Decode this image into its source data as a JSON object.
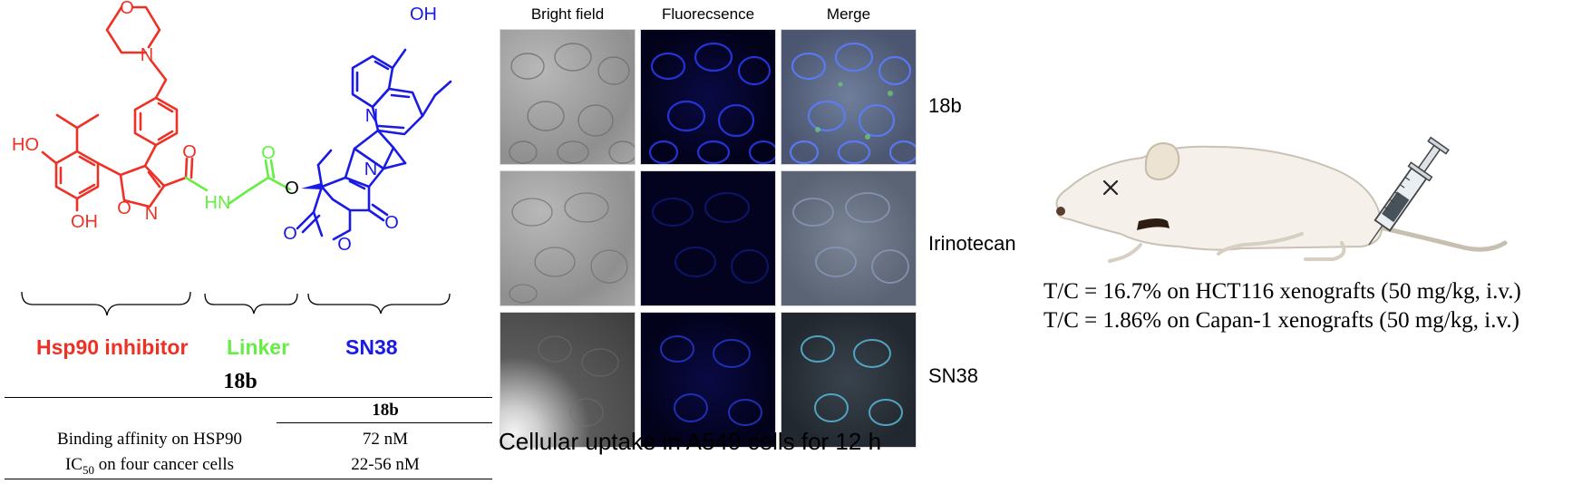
{
  "chem": {
    "atoms": {
      "morpholine_o": "O",
      "morpholine_n": "N",
      "ho_top": "HO",
      "ho_bottom": "OH",
      "isoxazole_o": "O",
      "isoxazole_n": "N",
      "amide_o": "O",
      "amide_nh": "HN",
      "linker_o": "O",
      "ester_o": "O",
      "oh_sn38": "OH",
      "quinoline_n": "N",
      "lactam_n": "N",
      "lactam_o": "O",
      "lactone_o": "O",
      "lactone_ring_o": "O"
    },
    "labels": {
      "hsp90": "Hsp90 inhibitor",
      "linker": "Linker",
      "sn38": "SN38",
      "compound": "18b"
    },
    "colors": {
      "hsp90": "#ee3124",
      "linker": "#66ee44",
      "sn38": "#1a1ae6"
    }
  },
  "table": {
    "column_header": "18b",
    "rows": [
      {
        "label": "Binding affinity on HSP90",
        "value": "72 nM"
      },
      {
        "label_main": "IC",
        "label_sub": "50",
        "label_rest": " on four cancer cells",
        "value": "22-56 nM"
      }
    ]
  },
  "grid": {
    "columns": [
      "Bright field",
      "Fluorecsence",
      "Merge"
    ],
    "rows": [
      "18b",
      "Irinotecan",
      "SN38"
    ],
    "caption": "Cellular uptake in A549 cells for 12 h"
  },
  "results": {
    "line1": "T/C = 16.7% on HCT116 xenografts (50 mg/kg, i.v.)",
    "line2": "T/C = 1.86% on Capan-1 xenografts (50 mg/kg, i.v.)"
  }
}
